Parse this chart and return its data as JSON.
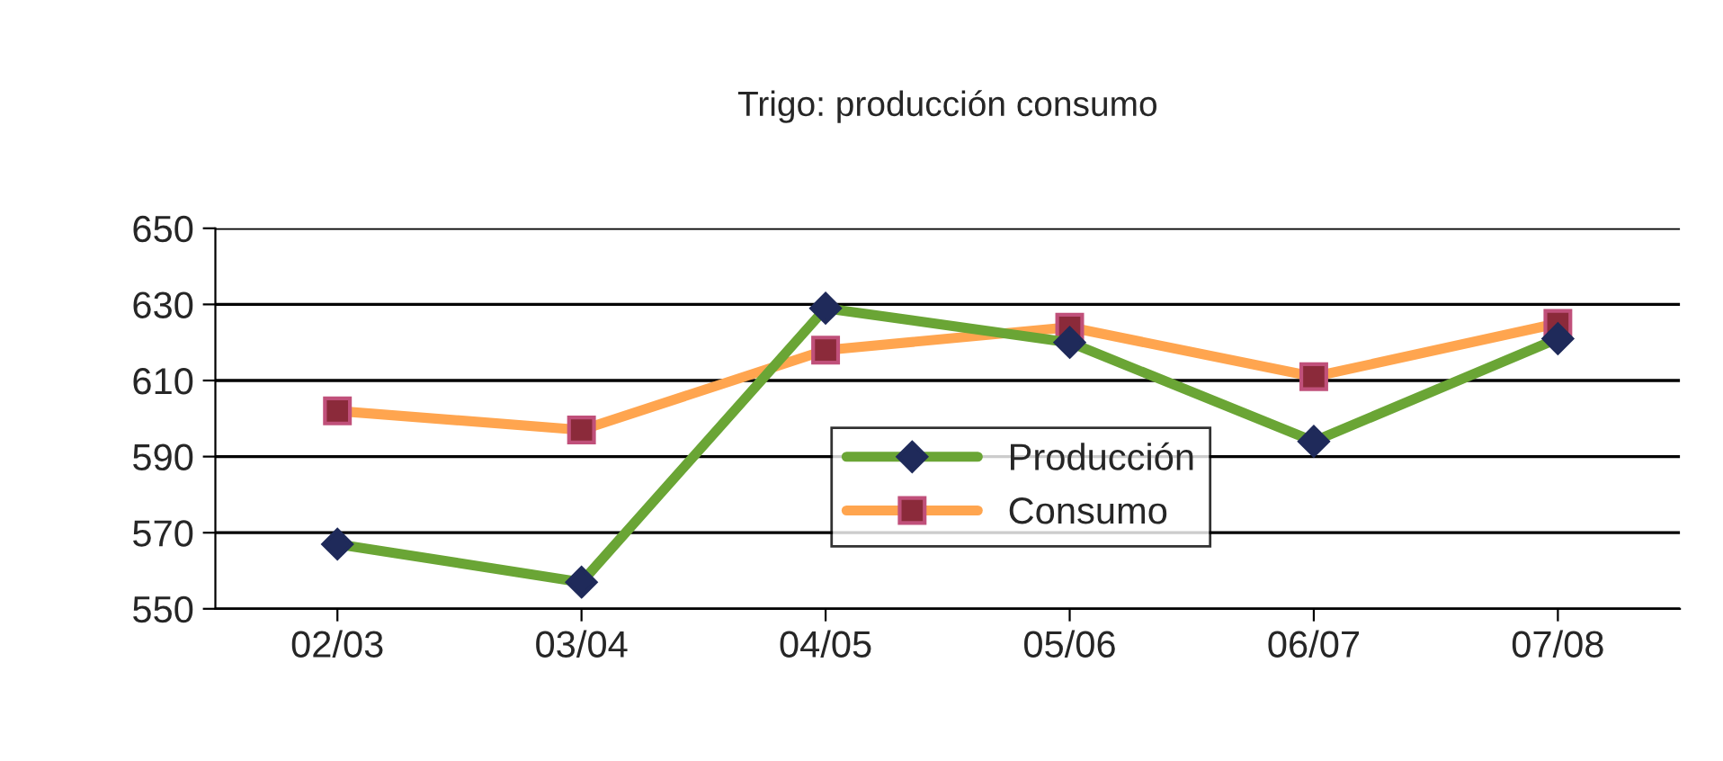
{
  "chart_data": {
    "type": "line",
    "title": "Trigo: producción consumo",
    "categories": [
      "02/03",
      "03/04",
      "04/05",
      "05/06",
      "06/07",
      "07/08"
    ],
    "series": [
      {
        "name": "Producción",
        "color": "#6aa535",
        "marker": "diamond",
        "values": [
          567,
          557,
          629,
          620,
          594,
          621
        ]
      },
      {
        "name": "Consumo",
        "color": "#ffa54f",
        "marker": "square",
        "values": [
          602,
          597,
          618,
          624,
          611,
          625
        ]
      }
    ],
    "ylim": [
      550,
      650
    ],
    "yticks": [
      550,
      570,
      590,
      610,
      630,
      650
    ],
    "grid": "y",
    "legend": "center",
    "line_style": "solid"
  }
}
